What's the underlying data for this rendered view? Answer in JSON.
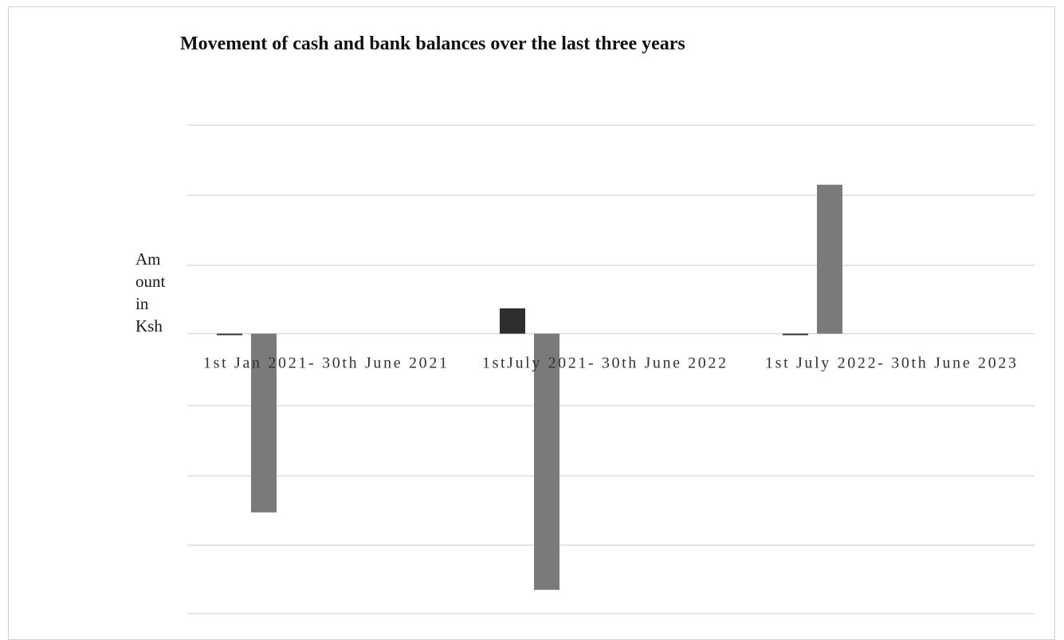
{
  "chart_data": {
    "type": "bar",
    "title": "Movement of cash and bank balances over the last three years",
    "ylabel_lines": [
      "Am",
      "ount",
      "in",
      "Ksh"
    ],
    "categories": [
      "1st Jan 2021- 30th June 2021",
      "1stJuly 2021- 30th June 2022",
      "1st July 2022- 30th June 2023"
    ],
    "series": [
      {
        "values": [
          -0.05,
          0.85,
          -0.05
        ]
      },
      {
        "values": [
          -6.0,
          -8.6,
          5.0
        ]
      }
    ],
    "ylim": [
      -9.4,
      7.0
    ],
    "grid": true,
    "colors": [
      "#2e2e2e",
      "#7a7a7a"
    ]
  }
}
